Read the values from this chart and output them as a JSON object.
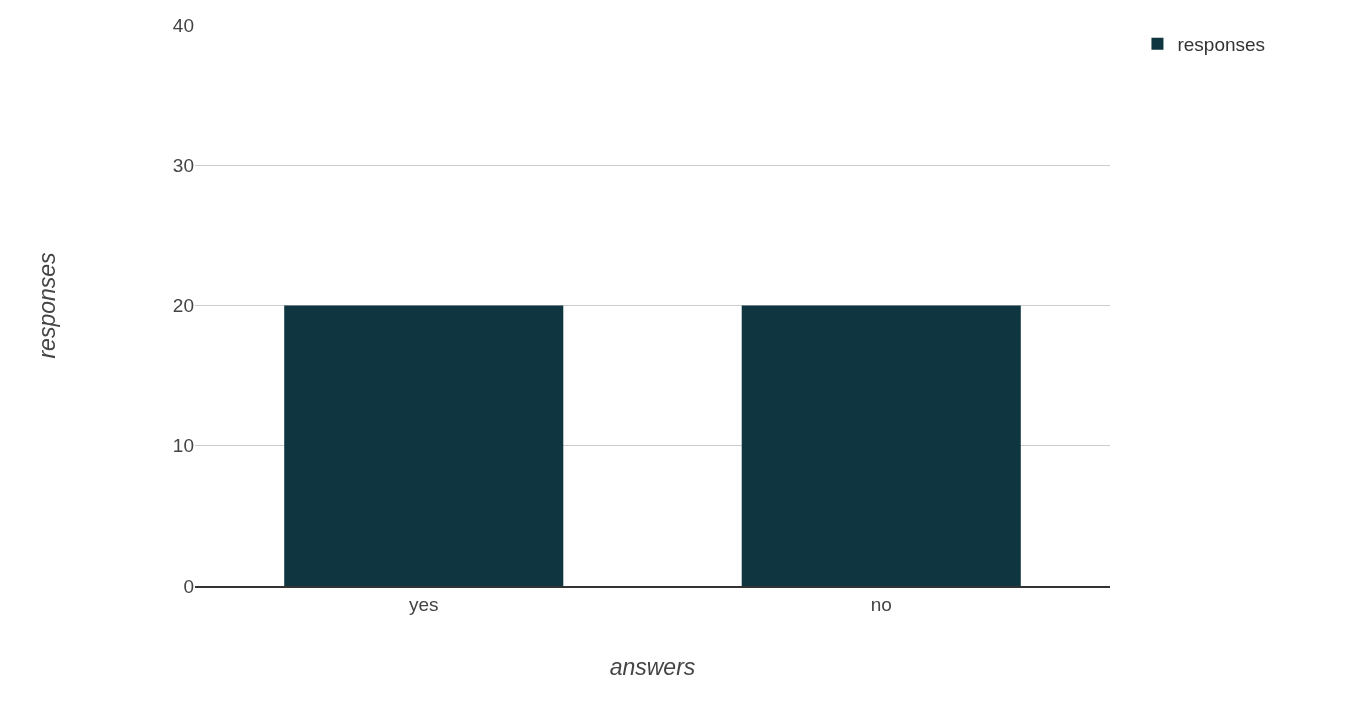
{
  "chart_data": {
    "type": "bar",
    "xlabel": "answers",
    "ylabel": "responses",
    "categories": [
      "yes",
      "no"
    ],
    "series": [
      {
        "name": "responses",
        "color": "#0f3640",
        "values": [
          20,
          20
        ]
      }
    ],
    "ylim": [
      0,
      40
    ],
    "yticks": [
      0,
      10,
      20,
      30,
      40
    ],
    "grid": "y",
    "legend": "top right"
  }
}
